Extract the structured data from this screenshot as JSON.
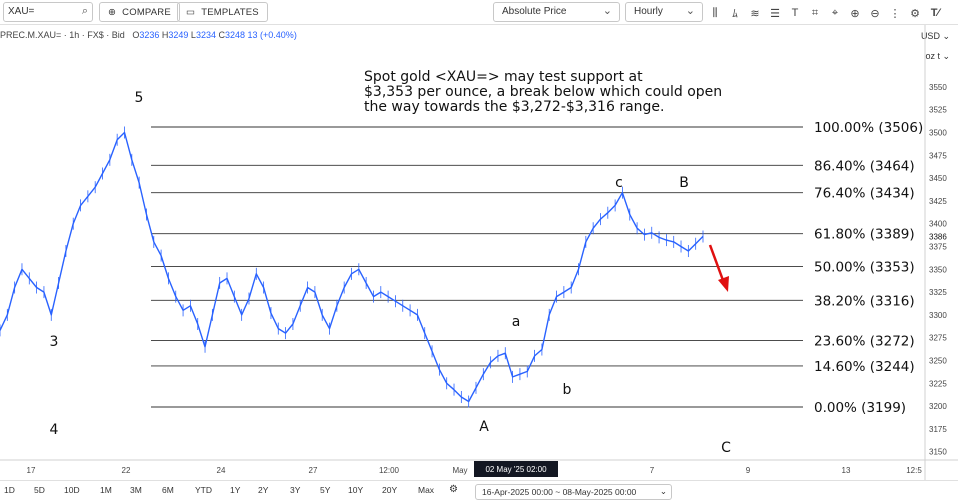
{
  "toolbar": {
    "symbol": "XAU=",
    "compare_label": "COMPARE",
    "templates_label": "TEMPLATES",
    "price_type": "Absolute Price",
    "interval": "Hourly",
    "currency": "USD",
    "unit": "oz t"
  },
  "info": {
    "symbol_line": "PREC.M.XAU= · 1h · FX$ · Bid",
    "o_label": "O",
    "o_val": "3236",
    "h_label": "H",
    "h_val": "3249",
    "l_label": "L",
    "l_val": "3234",
    "c_label": "C",
    "c_val": "3248",
    "change": "13 (+0.40%)"
  },
  "bottom": {
    "ranges": [
      "1D",
      "5D",
      "10D",
      "1M",
      "3M",
      "6M",
      "YTD",
      "1Y",
      "2Y",
      "3Y",
      "5Y",
      "10Y",
      "20Y",
      "Max"
    ],
    "date_range": "16-Apr-2025 00:00 ~ 08-May-2025 00:00"
  },
  "chart_data": {
    "type": "line",
    "title": "",
    "annotation": "Spot gold <XAU=> may test support at $3,353 per ounce, a break below which could open the way towards the $3,272-$3,316 range.",
    "ylim": [
      3145,
      3575
    ],
    "y_ticks": [
      3150,
      3175,
      3200,
      3225,
      3250,
      3275,
      3300,
      3325,
      3350,
      3375,
      3400,
      3425,
      3450,
      3475,
      3500,
      3525,
      3550
    ],
    "x_ticks": [
      "17",
      "22",
      "24",
      "27",
      "12:00",
      "May",
      "02 May '25",
      "02:00",
      "7",
      "9",
      "13",
      "12:5"
    ],
    "crosshair_label": "02 May '25  02:00",
    "last_price": "3386",
    "fib_levels": [
      {
        "label": "100.00% (3506)",
        "value": 3506
      },
      {
        "label": "86.40% (3464)",
        "value": 3464
      },
      {
        "label": "76.40% (3434)",
        "value": 3434
      },
      {
        "label": "61.80% (3389)",
        "value": 3389
      },
      {
        "label": "50.00% (3353)",
        "value": 3353
      },
      {
        "label": "38.20% (3316)",
        "value": 3316
      },
      {
        "label": "23.60% (3272)",
        "value": 3272
      },
      {
        "label": "14.60% (3244)",
        "value": 3244
      },
      {
        "label": "0.00% (3199)",
        "value": 3199
      }
    ],
    "wave_labels": [
      "5",
      "3",
      "4",
      "A",
      "a",
      "b",
      "c",
      "B",
      "C"
    ],
    "series": [
      {
        "values": [
          3283,
          3300,
          3330,
          3350,
          3340,
          3330,
          3325,
          3300,
          3335,
          3370,
          3400,
          3420,
          3430,
          3440,
          3455,
          3470,
          3492,
          3500,
          3470,
          3445,
          3410,
          3380,
          3365,
          3340,
          3320,
          3305,
          3310,
          3290,
          3265,
          3300,
          3335,
          3340,
          3320,
          3300,
          3318,
          3345,
          3330,
          3302,
          3285,
          3280,
          3290,
          3310,
          3330,
          3325,
          3300,
          3285,
          3310,
          3330,
          3345,
          3350,
          3335,
          3320,
          3325,
          3320,
          3315,
          3310,
          3305,
          3300,
          3280,
          3260,
          3240,
          3225,
          3218,
          3210,
          3205,
          3220,
          3235,
          3248,
          3255,
          3258,
          3232,
          3235,
          3238,
          3255,
          3262,
          3300,
          3320,
          3325,
          3330,
          3350,
          3380,
          3395,
          3405,
          3412,
          3420,
          3434,
          3410,
          3395,
          3388,
          3390,
          3385,
          3382,
          3380,
          3375,
          3370,
          3378,
          3386
        ]
      }
    ]
  }
}
